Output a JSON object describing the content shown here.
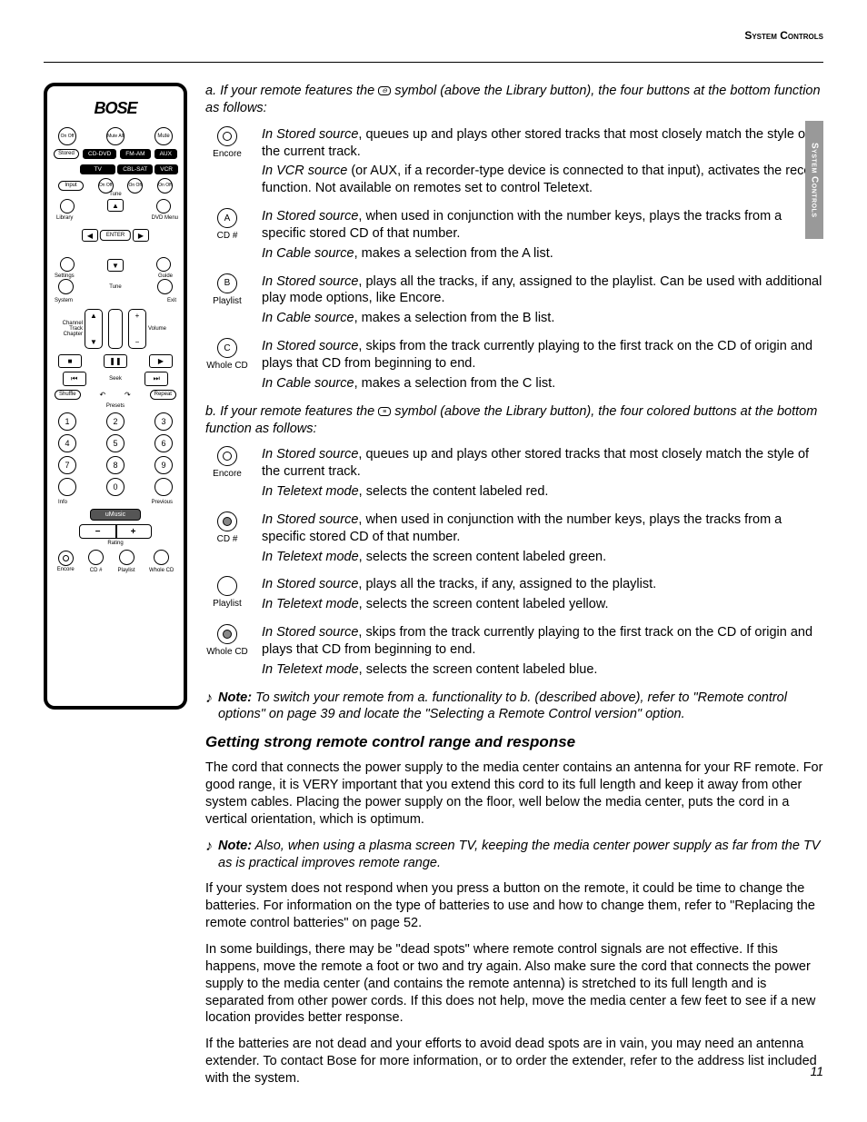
{
  "header": {
    "title": "System Controls",
    "side_tab": "System Controls"
  },
  "page_number": "11",
  "remote": {
    "logo": "BOSE",
    "top_row": {
      "onoff": "On\nOff",
      "muteall": "Mute\nAll",
      "mute": "Mute"
    },
    "source_row": [
      "Stored",
      "CD-DVD",
      "FM-AM",
      "AUX"
    ],
    "device_row": [
      "TV",
      "CBL-SAT",
      "VCR"
    ],
    "device_ctrl": [
      "Input",
      "On\nOff",
      "On\nOff",
      "On\nOff"
    ],
    "dpad": {
      "enter": "ENTER",
      "tune_up": "Tune",
      "tune_dn": "Tune",
      "labels": {
        "tl": "Library",
        "tr": "DVD Menu",
        "bl_top": "Settings",
        "bl_bot": "System",
        "br_top": "Guide",
        "br_bot": "Exit"
      }
    },
    "volchan": {
      "left": "Channel\nTrack\nChapter",
      "right": "Volume"
    },
    "transport": {
      "stop": "■",
      "pause": "❚❚",
      "play": "▶",
      "prev": "⏮",
      "seek": "Seek",
      "next": "⏭",
      "shuffle": "Shuffle",
      "repeat": "Repeat"
    },
    "presets": "Presets",
    "numbers": [
      "1",
      "2",
      "3",
      "4",
      "5",
      "6",
      "7",
      "8",
      "9",
      "0"
    ],
    "bottom_lbls": {
      "info": "Info",
      "previous": "Previous"
    },
    "umusic": "uMusic",
    "rating": "Rating",
    "four": {
      "labels": [
        "Encore",
        "CD #",
        "Playlist",
        "Whole CD"
      ]
    }
  },
  "sectionA": {
    "intro_a": "a. If your remote features the ",
    "intro_b": " symbol (above the Library button), the four buttons at the bottom function as follows:",
    "items": [
      {
        "letter": "",
        "dot": true,
        "label": "Encore",
        "lines": [
          {
            "lead": "In Stored source",
            "rest": ", queues up and plays other stored tracks that most closely match the style of the current track."
          },
          {
            "lead": "In VCR source",
            "rest": " (or AUX, if a recorder-type device is connected to that input), activates the record function. Not available on remotes set to control Teletext."
          }
        ]
      },
      {
        "letter": "A",
        "label": "CD #",
        "lines": [
          {
            "lead": "In Stored source",
            "rest": ", when used in conjunction with the number keys, plays the tracks from a specific stored CD of that number."
          },
          {
            "lead": "In Cable source",
            "rest": ", makes a selection from the A list."
          }
        ]
      },
      {
        "letter": "B",
        "label": "Playlist",
        "lines": [
          {
            "lead": "In Stored source",
            "rest": ", plays all the tracks, if any, assigned to the playlist. Can be used with additional play mode options, like Encore."
          },
          {
            "lead": "In Cable source",
            "rest": ", makes a selection from the B list."
          }
        ]
      },
      {
        "letter": "C",
        "label": "Whole CD",
        "lines": [
          {
            "lead": "In Stored source",
            "rest": ", skips from the track currently playing to the first track on the CD of origin and plays that CD from beginning to end."
          },
          {
            "lead": "In Cable source",
            "rest": ", makes a selection from the C list."
          }
        ]
      }
    ]
  },
  "sectionB": {
    "intro_a": "b. If your remote features the ",
    "intro_b": " symbol (above the Library button), the four colored buttons at the bottom function as follows:",
    "items": [
      {
        "dot": true,
        "fill": false,
        "label": "Encore",
        "lines": [
          {
            "lead": "In Stored source",
            "rest": ", queues up and plays other stored tracks that most closely match the style of the current track."
          },
          {
            "lead": "In Teletext mode",
            "rest": ", selects the content labeled red."
          }
        ]
      },
      {
        "dot": true,
        "fill": true,
        "label": "CD #",
        "lines": [
          {
            "lead": "In Stored source",
            "rest": ", when used in conjunction with the number keys, plays the tracks from a specific stored CD of that number."
          },
          {
            "lead": "In Teletext mode",
            "rest": ", selects the screen content labeled green."
          }
        ]
      },
      {
        "dot": false,
        "fill": false,
        "label": "Playlist",
        "lines": [
          {
            "lead": "In Stored source",
            "rest": ", plays all the tracks, if any, assigned to the playlist."
          },
          {
            "lead": "In Teletext mode",
            "rest": ", selects the screen content labeled yellow."
          }
        ]
      },
      {
        "dot": true,
        "fill": true,
        "label": "Whole CD",
        "lines": [
          {
            "lead": "In Stored source",
            "rest": ", skips from the track currently playing to the first track on the CD of origin and plays that CD from beginning to end."
          },
          {
            "lead": "In Teletext mode",
            "rest": ", selects the screen content labeled blue."
          }
        ]
      }
    ]
  },
  "note1": {
    "lead": "Note:",
    "rest": " To switch your remote from a. functionality to b. (described above), refer to \"Remote control options\" on page 39 and locate the \"Selecting a Remote Control version\" option."
  },
  "getting": {
    "heading": "Getting strong remote control range and response",
    "p1": "The cord that connects the power supply to the media center contains an antenna for your RF remote. For good range, it is VERY important that you extend this cord to its full length and keep it away from other system cables. Placing the power supply on the floor, well below the media center, puts the cord in a vertical orientation, which is optimum.",
    "note": {
      "lead": "Note:",
      "rest": " Also, when using a plasma screen TV, keeping the media center power supply as far from the TV as is practical improves remote range."
    },
    "p2": "If your system does not respond when you press a button on the remote, it could be time to change the batteries. For information on the type of batteries to use and how to change them, refer to \"Replacing the remote control batteries\" on page 52.",
    "p3": "In some buildings, there may be \"dead spots\" where remote control signals are not effective. If this happens, move the remote a foot or two and try again. Also make sure the cord that connects the power supply to the media center (and contains the remote antenna) is stretched to its full length and is separated from other power cords. If this does not help, move the media center a few feet to see if a new location provides better response.",
    "p4": "If the batteries are not dead and your efforts to avoid dead spots are in vain, you may need an antenna extender. To contact Bose for more information, or to order the extender, refer to the address list included with the system."
  }
}
